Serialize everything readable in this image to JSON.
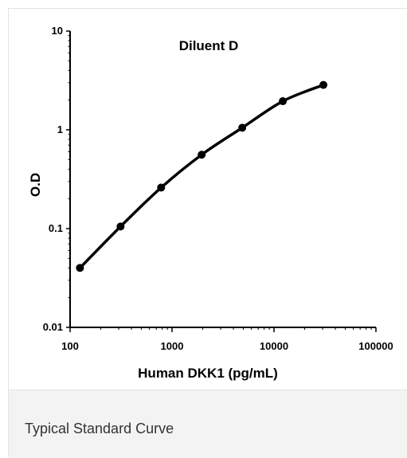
{
  "caption": "Typical Standard Curve",
  "chart_data": {
    "type": "line",
    "title": "Diluent D",
    "xlabel": "Human DKK1 (pg/mL)",
    "ylabel": "O.D",
    "xscale": "log",
    "yscale": "log",
    "xlim": [
      100,
      100000
    ],
    "ylim": [
      0.01,
      10
    ],
    "xticks": [
      100,
      1000,
      10000,
      100000
    ],
    "xtick_labels": [
      "100",
      "1000",
      "10000",
      "100000"
    ],
    "yticks": [
      0.01,
      0.1,
      1,
      10
    ],
    "ytick_labels": [
      "0.01",
      "0.1",
      "1",
      "10"
    ],
    "grid": false,
    "series": [
      {
        "x": [
          125,
          312.5,
          781.25,
          1953.125,
          4882.8,
          12207,
          30518
        ],
        "y": [
          0.04,
          0.105,
          0.26,
          0.56,
          1.05,
          1.95,
          2.85
        ]
      }
    ],
    "colors": {
      "line": "#000000",
      "axis": "#000000"
    }
  }
}
